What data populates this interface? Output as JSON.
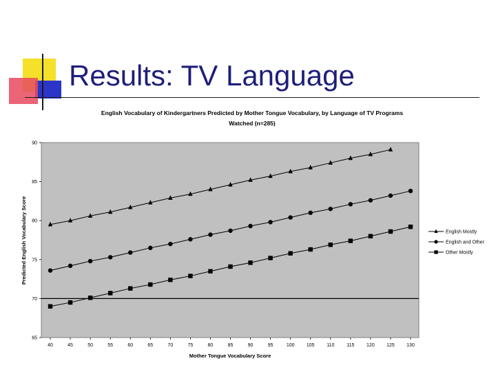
{
  "slide": {
    "title": "Results: TV Language"
  },
  "colors": {
    "title": "#1e1e7a",
    "plot_bg": "#c0c0c0",
    "deco_yellow": "#f5e02a",
    "deco_red": "#e84a5f",
    "deco_blue": "#2b35c8"
  },
  "chart_data": {
    "type": "line",
    "title_line1": "English Vocabulary of Kindergartners Predicted by Mother Tongue Vocabulary,  by Language of TV Programs",
    "title_line2": "Watched (n=285)",
    "xlabel": "Mother Tongue Vocabulary Score",
    "ylabel": "Predicted English Vocabulary Score",
    "x_ticks": [
      40,
      45,
      50,
      55,
      60,
      65,
      70,
      75,
      80,
      85,
      90,
      95,
      100,
      105,
      110,
      115,
      120,
      125,
      130
    ],
    "y_ticks": [
      65,
      70,
      75,
      80,
      85,
      90
    ],
    "ylim": [
      65,
      90
    ],
    "grid": false,
    "reference_line_y": 70,
    "legend_position": "right",
    "series": [
      {
        "name": "English Mostly",
        "marker": "triangle",
        "x": [
          40,
          45,
          50,
          55,
          60,
          65,
          70,
          75,
          80,
          85,
          90,
          95,
          100,
          105,
          110,
          115,
          120,
          125
        ],
        "y": [
          79.5,
          80.0,
          80.6,
          81.1,
          81.7,
          82.3,
          82.9,
          83.4,
          84.0,
          84.6,
          85.2,
          85.7,
          86.3,
          86.8,
          87.4,
          88.0,
          88.5,
          89.1
        ]
      },
      {
        "name": "English and Other",
        "marker": "circle",
        "x": [
          40,
          45,
          50,
          55,
          60,
          65,
          70,
          75,
          80,
          85,
          90,
          95,
          100,
          105,
          110,
          115,
          120,
          125,
          130
        ],
        "y": [
          73.6,
          74.2,
          74.8,
          75.3,
          75.9,
          76.5,
          77.0,
          77.6,
          78.2,
          78.7,
          79.3,
          79.8,
          80.4,
          81.0,
          81.5,
          82.1,
          82.6,
          83.2,
          83.8
        ]
      },
      {
        "name": "Other Mostly",
        "marker": "square",
        "x": [
          40,
          45,
          50,
          55,
          60,
          65,
          70,
          75,
          80,
          85,
          90,
          95,
          100,
          105,
          110,
          115,
          120,
          125,
          130
        ],
        "y": [
          69.0,
          69.5,
          70.1,
          70.7,
          71.3,
          71.8,
          72.4,
          72.9,
          73.5,
          74.1,
          74.6,
          75.2,
          75.8,
          76.3,
          76.9,
          77.4,
          78.0,
          78.6,
          79.2
        ]
      }
    ]
  }
}
